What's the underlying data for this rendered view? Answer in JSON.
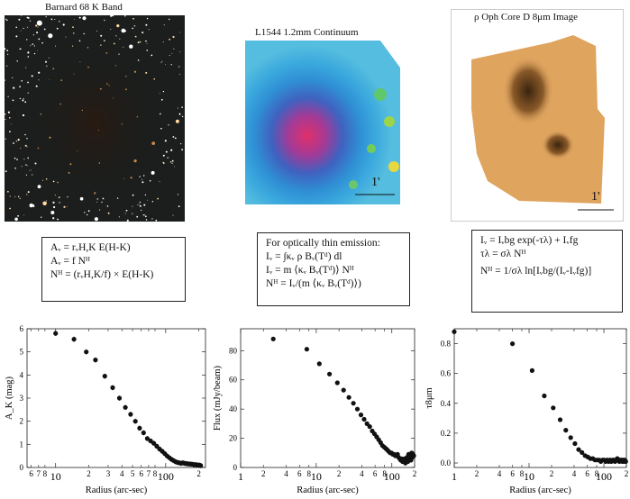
{
  "images": [
    {
      "title": "Barnard 68 K Band"
    },
    {
      "title": "L1544 1.2mm Continuum",
      "scalebar": "1'"
    },
    {
      "title": "ρ Oph Core D 8μm Image",
      "scalebar": "1'"
    }
  ],
  "equations": {
    "left": [
      "Aᵥ = rᵥH,K E(H-K)",
      "Aᵥ = f Nᴴ",
      "Nᴴ = (rᵥH,K/f) × E(H-K)"
    ],
    "middle": [
      "For optically thin emission:",
      "Iᵥ = ∫κᵥ ρ Bᵥ(Tᵈ) dl",
      "Iᵥ = m ⟨κᵥ Bᵥ(Tᵈ)⟩ Nᴴ",
      "Nᴴ = Iᵥ/(m ⟨κᵥ Bᵥ(Tᵈ)⟩)"
    ],
    "right": [
      "Iᵥ = Iᵥbg exp(-τλ) + Iᵥfg",
      "τλ = σλ Nᴴ",
      "Nᴴ = 1/σλ ln[Iᵥbg/(Iᵥ-Iᵥfg)]"
    ]
  },
  "chart_data": [
    {
      "type": "scatter",
      "title": "",
      "xlabel": "Radius (arc-sec)",
      "ylabel": "A_K (mag)",
      "xscale": "log",
      "xlim": [
        5.5,
        230
      ],
      "ylim": [
        0,
        6
      ],
      "yticks": [
        0,
        1,
        2,
        3,
        4,
        5,
        6
      ],
      "x_major_ticks": [
        {
          "v": 10,
          "label": "10"
        },
        {
          "v": 100,
          "label": "100"
        }
      ],
      "x_minor_ticks": [
        {
          "v": 6,
          "label": "6"
        },
        {
          "v": 7,
          "label": "7"
        },
        {
          "v": 8,
          "label": "8"
        },
        {
          "v": 20,
          "label": "2"
        },
        {
          "v": 30,
          "label": "3"
        },
        {
          "v": 40,
          "label": "4"
        },
        {
          "v": 50,
          "label": "5"
        },
        {
          "v": 60,
          "label": "6"
        },
        {
          "v": 70,
          "label": "7"
        },
        {
          "v": 80,
          "label": "8"
        },
        {
          "v": 200,
          "label": "2"
        }
      ],
      "error_bars": true,
      "x": [
        10,
        14.7,
        19,
        23,
        28,
        33,
        38,
        43,
        48,
        53,
        58,
        63,
        68,
        73,
        78,
        83,
        88,
        93,
        98,
        103,
        108,
        113,
        118,
        123,
        128,
        133,
        138,
        143,
        148,
        153,
        158,
        163,
        168,
        173,
        178,
        183,
        188,
        193,
        198,
        203,
        208
      ],
      "y": [
        5.8,
        5.55,
        5.0,
        4.65,
        3.95,
        3.45,
        3.0,
        2.6,
        2.3,
        2.0,
        1.7,
        1.5,
        1.25,
        1.15,
        1.05,
        0.92,
        0.8,
        0.7,
        0.6,
        0.5,
        0.42,
        0.35,
        0.3,
        0.25,
        0.22,
        0.2,
        0.18,
        0.2,
        0.18,
        0.17,
        0.16,
        0.15,
        0.15,
        0.14,
        0.13,
        0.12,
        0.12,
        0.11,
        0.1,
        0.1,
        0.08
      ]
    },
    {
      "type": "scatter",
      "title": "",
      "xlabel": "Radius (arc-sec)",
      "ylabel": "Flux (mJy/beam)",
      "xscale": "log",
      "xlim": [
        1,
        200
      ],
      "ylim": [
        0,
        95
      ],
      "yticks": [
        0,
        20,
        40,
        60,
        80
      ],
      "x_major_ticks": [
        {
          "v": 1,
          "label": "1"
        },
        {
          "v": 10,
          "label": "10"
        },
        {
          "v": 100,
          "label": "100"
        }
      ],
      "x_minor_ticks": [
        {
          "v": 2,
          "label": "2"
        },
        {
          "v": 4,
          "label": "4"
        },
        {
          "v": 6,
          "label": "6"
        },
        {
          "v": 8,
          "label": "8"
        },
        {
          "v": 20,
          "label": "2"
        },
        {
          "v": 40,
          "label": "4"
        },
        {
          "v": 60,
          "label": "6"
        },
        {
          "v": 80,
          "label": "8"
        },
        {
          "v": 200,
          "label": "2"
        }
      ],
      "error_bars": false,
      "x": [
        2.7,
        7.5,
        11,
        15,
        19,
        23,
        27,
        31,
        35,
        39,
        43,
        47,
        51,
        55,
        59,
        63,
        67,
        71,
        75,
        79,
        83,
        87,
        91,
        95,
        99,
        103,
        107,
        111,
        115,
        119,
        123,
        127,
        131,
        135,
        139,
        143,
        147,
        151,
        155,
        159,
        163,
        167,
        171,
        175,
        179,
        183,
        187,
        191,
        195
      ],
      "y": [
        88,
        81,
        71,
        64,
        58,
        53,
        48,
        44,
        40,
        36,
        33,
        30,
        28,
        25,
        23,
        21,
        19,
        17,
        15,
        14,
        13,
        12,
        11,
        10,
        10,
        9,
        9,
        8,
        8,
        9,
        7,
        6,
        5,
        6,
        4,
        5,
        6,
        3,
        5,
        7,
        4,
        9,
        6,
        8,
        5,
        10,
        7,
        9,
        8
      ]
    },
    {
      "type": "scatter",
      "title": "",
      "xlabel": "Radius (arc-sec)",
      "ylabel": "τ8μm",
      "xscale": "log",
      "xlim": [
        1,
        200
      ],
      "ylim": [
        -0.03,
        0.9
      ],
      "yticks": [
        0.0,
        0.2,
        0.4,
        0.6,
        0.8
      ],
      "ytick_labels": [
        "0.0",
        "0.2",
        "0.4",
        "0.6",
        "0.8"
      ],
      "x_major_ticks": [
        {
          "v": 1,
          "label": "1"
        },
        {
          "v": 10,
          "label": "10"
        },
        {
          "v": 100,
          "label": "100"
        }
      ],
      "x_minor_ticks": [
        {
          "v": 2,
          "label": "2"
        },
        {
          "v": 4,
          "label": "4"
        },
        {
          "v": 6,
          "label": "6"
        },
        {
          "v": 8,
          "label": "8"
        },
        {
          "v": 20,
          "label": "2"
        },
        {
          "v": 40,
          "label": "4"
        },
        {
          "v": 60,
          "label": "6"
        },
        {
          "v": 80,
          "label": "8"
        },
        {
          "v": 200,
          "label": "2"
        }
      ],
      "error_bars": false,
      "x": [
        1.0,
        6.0,
        11,
        16,
        21,
        26,
        31,
        36,
        41,
        46,
        51,
        56,
        61,
        66,
        71,
        76,
        81,
        86,
        91,
        96,
        101,
        106,
        111,
        116,
        121,
        126,
        131,
        136,
        141,
        146,
        151,
        156,
        161,
        166,
        171,
        176,
        181,
        186,
        191,
        196
      ],
      "y": [
        0.88,
        0.8,
        0.62,
        0.45,
        0.37,
        0.29,
        0.22,
        0.17,
        0.13,
        0.09,
        0.07,
        0.05,
        0.04,
        0.03,
        0.03,
        0.02,
        0.02,
        0.02,
        0.01,
        0.02,
        0.02,
        0.01,
        0.02,
        0.01,
        0.02,
        0.01,
        0.02,
        0.02,
        0.01,
        0.02,
        0.03,
        0.02,
        0.01,
        0.02,
        0.02,
        0.01,
        0.02,
        0.01,
        0.02,
        0.01
      ]
    }
  ]
}
